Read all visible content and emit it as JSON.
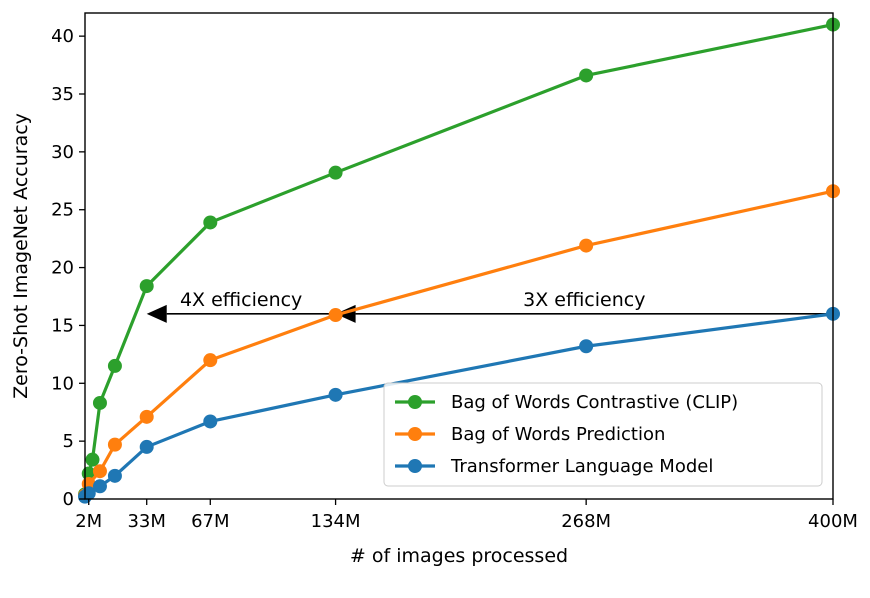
{
  "chart_data": {
    "type": "line",
    "title": "",
    "xlabel": "# of images processed",
    "ylabel": "Zero-Shot ImageNet Accuracy",
    "xlim": [
      0,
      400
    ],
    "ylim": [
      0,
      42
    ],
    "x_ticks": [
      {
        "value": 2,
        "label": "2M"
      },
      {
        "value": 33,
        "label": "33M"
      },
      {
        "value": 67,
        "label": "67M"
      },
      {
        "value": 134,
        "label": "134M"
      },
      {
        "value": 268,
        "label": "268M"
      },
      {
        "value": 400,
        "label": "400M"
      }
    ],
    "y_ticks": [
      0,
      5,
      10,
      15,
      20,
      25,
      30,
      35,
      40
    ],
    "grid": false,
    "legend_position": "bottom-right",
    "series": [
      {
        "name": "Bag of Words Contrastive (CLIP)",
        "color": "#2ca02c",
        "points": [
          {
            "x": 0,
            "y": 0.4
          },
          {
            "x": 2,
            "y": 2.2
          },
          {
            "x": 4,
            "y": 3.4
          },
          {
            "x": 8,
            "y": 8.3
          },
          {
            "x": 16,
            "y": 11.5
          },
          {
            "x": 33,
            "y": 18.4
          },
          {
            "x": 67,
            "y": 23.9
          },
          {
            "x": 134,
            "y": 28.2
          },
          {
            "x": 268,
            "y": 36.6
          },
          {
            "x": 400,
            "y": 41.0
          }
        ]
      },
      {
        "name": "Bag of Words Prediction",
        "color": "#ff7f0e",
        "points": [
          {
            "x": 0,
            "y": 0.3
          },
          {
            "x": 2,
            "y": 1.3
          },
          {
            "x": 8,
            "y": 2.4
          },
          {
            "x": 16,
            "y": 4.7
          },
          {
            "x": 33,
            "y": 7.1
          },
          {
            "x": 67,
            "y": 12.0
          },
          {
            "x": 134,
            "y": 15.9
          },
          {
            "x": 268,
            "y": 21.9
          },
          {
            "x": 400,
            "y": 26.6
          }
        ]
      },
      {
        "name": "Transformer Language Model",
        "color": "#1f77b4",
        "points": [
          {
            "x": 0,
            "y": 0.2
          },
          {
            "x": 2,
            "y": 0.5
          },
          {
            "x": 8,
            "y": 1.1
          },
          {
            "x": 16,
            "y": 2.0
          },
          {
            "x": 33,
            "y": 4.5
          },
          {
            "x": 67,
            "y": 6.7
          },
          {
            "x": 134,
            "y": 9.0
          },
          {
            "x": 268,
            "y": 13.2
          },
          {
            "x": 400,
            "y": 16.0
          }
        ]
      }
    ],
    "annotations": [
      {
        "text": "4X efficiency",
        "from": {
          "x": 134,
          "y": 16.0
        },
        "to": {
          "x": 33,
          "y": 16.0
        }
      },
      {
        "text": "3X efficiency",
        "from": {
          "x": 400,
          "y": 16.0
        },
        "to": {
          "x": 134,
          "y": 16.0
        }
      }
    ]
  }
}
